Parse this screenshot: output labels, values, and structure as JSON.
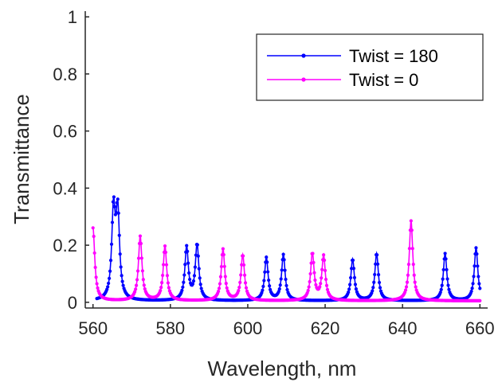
{
  "chart_data": {
    "type": "line",
    "xlabel": "Wavelength, nm",
    "ylabel": "Transmittance",
    "xlim": [
      558,
      662
    ],
    "ylim": [
      -0.02,
      1.02
    ],
    "xticks": [
      "560",
      "580",
      "600",
      "620",
      "640",
      "660"
    ],
    "yticks": [
      "0",
      "0.2",
      "0.4",
      "0.6",
      "0.8",
      "1"
    ],
    "grid": false,
    "legend_position": "top-right",
    "series": [
      {
        "name": "Twist = 180",
        "color": "#0000ff",
        "marker": "dot",
        "peaks": [
          [
            565.3,
            0.31
          ],
          [
            566.4,
            0.3
          ],
          [
            584.2,
            0.19
          ],
          [
            586.9,
            0.2
          ],
          [
            604.8,
            0.155
          ],
          [
            609.2,
            0.165
          ],
          [
            627.1,
            0.15
          ],
          [
            633.3,
            0.17
          ],
          [
            651.0,
            0.17
          ],
          [
            659.0,
            0.19
          ]
        ],
        "baseline": 0.005,
        "x_range": [
          561,
          660
        ]
      },
      {
        "name": "Twist = 0",
        "color": "#ff00ff",
        "marker": "dot",
        "peaks": [
          [
            560.0,
            0.26
          ],
          [
            572.2,
            0.23
          ],
          [
            578.6,
            0.195
          ],
          [
            593.6,
            0.185
          ],
          [
            598.7,
            0.165
          ],
          [
            616.7,
            0.17
          ],
          [
            619.6,
            0.16
          ],
          [
            642.2,
            0.285
          ]
        ],
        "baseline": 0.005,
        "x_range": [
          560,
          660
        ]
      }
    ]
  }
}
